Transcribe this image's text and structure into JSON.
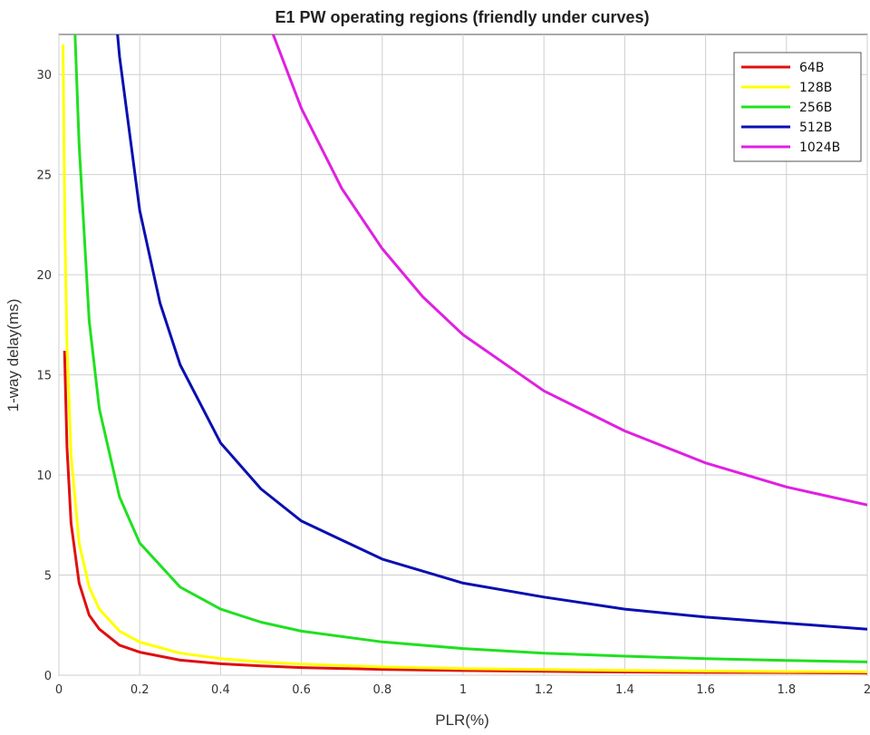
{
  "chart_data": {
    "type": "line",
    "title": "E1 PW operating regions (friendly under curves)",
    "xlabel": "PLR(%)",
    "ylabel": "1-way delay(ms)",
    "xlim": [
      0,
      2
    ],
    "ylim": [
      0,
      32
    ],
    "x_ticks": [
      "0",
      "0.2",
      "0.4",
      "0.6",
      "0.8",
      "1",
      "1.2",
      "1.4",
      "1.6",
      "1.8",
      "2"
    ],
    "y_ticks": [
      "0",
      "5",
      "10",
      "15",
      "20",
      "25",
      "30"
    ],
    "grid": true,
    "legend_position": "top-right",
    "series": [
      {
        "name": "64B",
        "color": "#e01010",
        "x": [
          0.014,
          0.02,
          0.03,
          0.05,
          0.075,
          0.1,
          0.15,
          0.2,
          0.3,
          0.4,
          0.5,
          0.6,
          0.8,
          1.0,
          1.2,
          1.4,
          1.6,
          1.8,
          2.0
        ],
        "y": [
          16.2,
          11.4,
          7.6,
          4.6,
          3.0,
          2.3,
          1.5,
          1.15,
          0.75,
          0.57,
          0.46,
          0.38,
          0.29,
          0.23,
          0.19,
          0.16,
          0.14,
          0.13,
          0.11
        ]
      },
      {
        "name": "128B",
        "color": "#ffff00",
        "x": [
          0.01,
          0.015,
          0.02,
          0.03,
          0.05,
          0.075,
          0.1,
          0.15,
          0.2,
          0.3,
          0.4,
          0.5,
          0.6,
          0.8,
          1.0,
          1.2,
          1.4,
          1.6,
          1.8,
          2.0
        ],
        "y": [
          31.5,
          22.0,
          16.5,
          11.0,
          6.6,
          4.4,
          3.3,
          2.2,
          1.65,
          1.1,
          0.83,
          0.66,
          0.55,
          0.41,
          0.33,
          0.28,
          0.24,
          0.21,
          0.18,
          0.17
        ]
      },
      {
        "name": "256B",
        "color": "#20e020",
        "x": [
          0.04,
          0.05,
          0.075,
          0.1,
          0.15,
          0.2,
          0.3,
          0.4,
          0.5,
          0.6,
          0.8,
          1.0,
          1.2,
          1.4,
          1.6,
          1.8,
          2.0
        ],
        "y": [
          32.0,
          26.5,
          17.7,
          13.3,
          8.9,
          6.6,
          4.4,
          3.3,
          2.65,
          2.2,
          1.66,
          1.33,
          1.1,
          0.95,
          0.83,
          0.74,
          0.66
        ]
      },
      {
        "name": "512B",
        "color": "#0a10b0",
        "x": [
          0.145,
          0.15,
          0.2,
          0.25,
          0.3,
          0.4,
          0.5,
          0.6,
          0.8,
          1.0,
          1.2,
          1.4,
          1.6,
          1.8,
          2.0
        ],
        "y": [
          32.0,
          30.9,
          23.2,
          18.6,
          15.5,
          11.6,
          9.3,
          7.7,
          5.8,
          4.6,
          3.9,
          3.3,
          2.9,
          2.6,
          2.3
        ]
      },
      {
        "name": "1024B",
        "color": "#e020e0",
        "x": [
          0.53,
          0.6,
          0.7,
          0.8,
          0.9,
          1.0,
          1.2,
          1.4,
          1.6,
          1.8,
          2.0
        ],
        "y": [
          32.0,
          28.3,
          24.3,
          21.3,
          18.9,
          17.0,
          14.2,
          12.2,
          10.6,
          9.4,
          8.5
        ]
      }
    ]
  }
}
